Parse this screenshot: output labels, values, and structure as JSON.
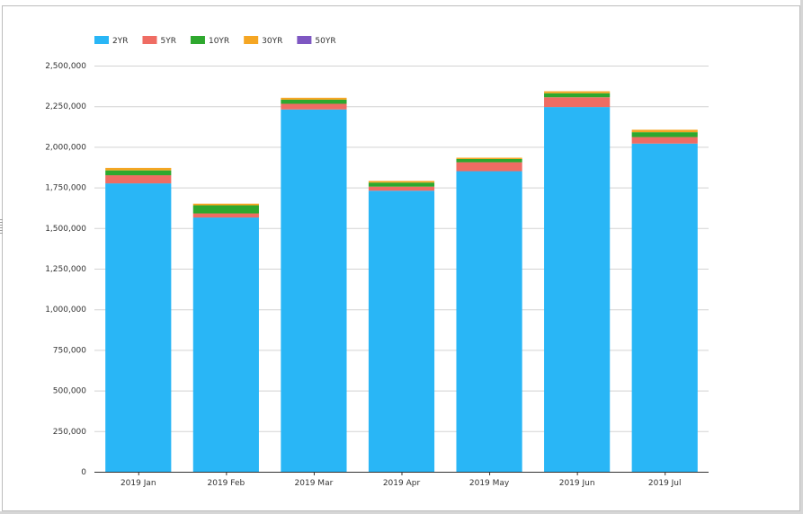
{
  "chart_data": {
    "type": "bar",
    "stacked": true,
    "categories": [
      "2019 Jan",
      "2019 Feb",
      "2019 Mar",
      "2019 Apr",
      "2019 May",
      "2019 Jun",
      "2019 Jul"
    ],
    "series": [
      {
        "name": "2YR",
        "color": "#29b6f6",
        "values": [
          1775000,
          1565000,
          2230000,
          1730000,
          1850000,
          2245000,
          2020000
        ]
      },
      {
        "name": "5YR",
        "color": "#ef6c63",
        "values": [
          50000,
          25000,
          35000,
          25000,
          55000,
          60000,
          40000
        ]
      },
      {
        "name": "10YR",
        "color": "#2ea82e",
        "values": [
          30000,
          50000,
          25000,
          25000,
          20000,
          25000,
          30000
        ]
      },
      {
        "name": "30YR",
        "color": "#f5a623",
        "values": [
          15000,
          10000,
          12000,
          10000,
          8000,
          12000,
          15000
        ]
      },
      {
        "name": "50YR",
        "color": "#7e57c2",
        "values": [
          0,
          0,
          0,
          0,
          0,
          0,
          0
        ]
      }
    ],
    "ylim": [
      0,
      2500000
    ],
    "yticks": [
      {
        "value": 0,
        "label": "0"
      },
      {
        "value": 250000,
        "label": "250,000"
      },
      {
        "value": 500000,
        "label": "500,000"
      },
      {
        "value": 750000,
        "label": "750,000"
      },
      {
        "value": 1000000,
        "label": "1,000,000"
      },
      {
        "value": 1250000,
        "label": "1,250,000"
      },
      {
        "value": 1500000,
        "label": "1,500,000"
      },
      {
        "value": 1750000,
        "label": "1,750,000"
      },
      {
        "value": 2000000,
        "label": "2,000,000"
      },
      {
        "value": 2250000,
        "label": "2,250,000"
      },
      {
        "value": 2500000,
        "label": "2,500,000"
      }
    ],
    "grid": true,
    "legend_position": "top-left",
    "title": "",
    "xlabel": "",
    "ylabel": ""
  }
}
